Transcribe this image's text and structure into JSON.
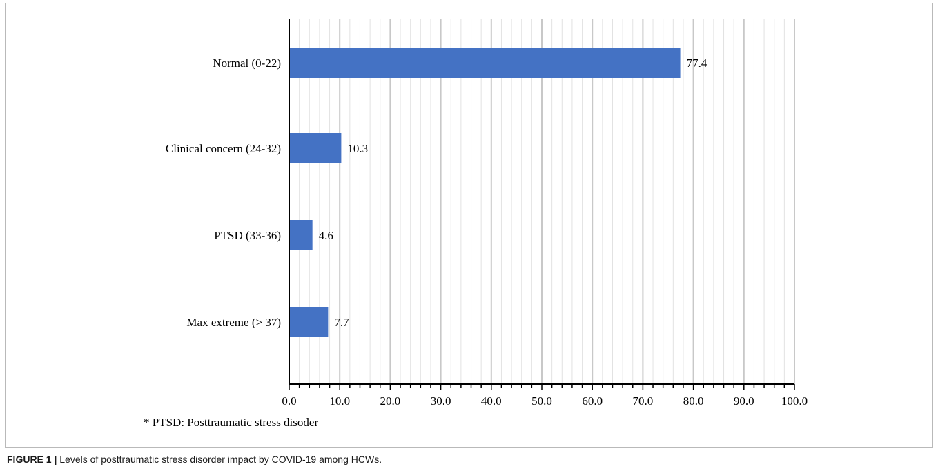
{
  "chart_data": {
    "type": "bar",
    "orientation": "horizontal",
    "categories": [
      "Normal (0-22)",
      "Clinical concern (24-32)",
      "PTSD (33-36)",
      "Max extreme (> 37)"
    ],
    "values": [
      77.4,
      10.3,
      4.6,
      7.7
    ],
    "data_labels": [
      "77.4",
      "10.3",
      "4.6",
      "7.7"
    ],
    "xlim": [
      0,
      100
    ],
    "xticks": [
      0,
      10,
      20,
      30,
      40,
      50,
      60,
      70,
      80,
      90,
      100
    ],
    "xtick_labels": [
      "0.0",
      "10.0",
      "20.0",
      "30.0",
      "40.0",
      "50.0",
      "60.0",
      "70.0",
      "80.0",
      "90.0",
      "100.0"
    ],
    "minor_step": 2,
    "grid": true,
    "bar_color": "#4472C4",
    "footnote": "* PTSD: Posttraumatic stress disoder"
  },
  "caption": {
    "label": "FIGURE 1 |",
    "text": "Levels of posttraumatic stress disorder impact by COVID-19 among HCWs."
  }
}
